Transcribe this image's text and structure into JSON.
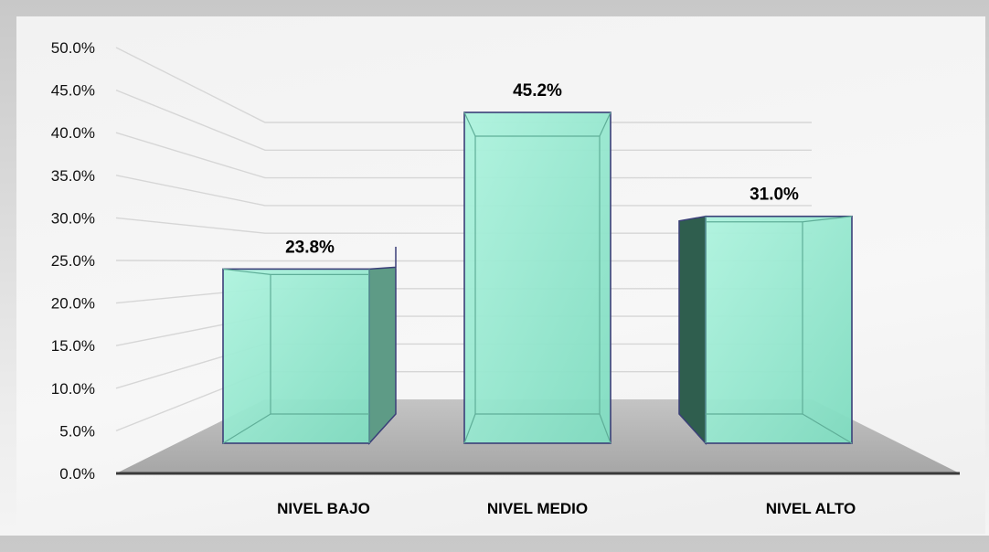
{
  "chart_data": {
    "type": "bar",
    "title": "",
    "xlabel": "",
    "ylabel": "",
    "categories": [
      "NIVEL BAJO",
      "NIVEL MEDIO",
      "NIVEL ALTO"
    ],
    "values": [
      23.8,
      45.2,
      31.0
    ],
    "value_labels": [
      "23.8%",
      "45.2%",
      "31.0%"
    ],
    "ylim": [
      0,
      50
    ],
    "yticks": [
      0,
      5,
      10,
      15,
      20,
      25,
      30,
      35,
      40,
      45,
      50
    ],
    "ytick_labels": [
      "0.0%",
      "5.0%",
      "10.0%",
      "15.0%",
      "20.0%",
      "25.0%",
      "30.0%",
      "35.0%",
      "40.0%",
      "45.0%",
      "50.0%"
    ],
    "grid": true,
    "legend": "none",
    "style": "3d",
    "colors": {
      "bar_front": "#7fdcc0",
      "bar_highlight": "#aef3de",
      "bar_side_dark": "#2f5e4e",
      "bar_side_mid": "#5e9b86",
      "bar_edge": "#3b3f78",
      "floor": "#b3b3b3",
      "axis": "#3a3a3a",
      "grid": "#d6d6d6"
    }
  }
}
